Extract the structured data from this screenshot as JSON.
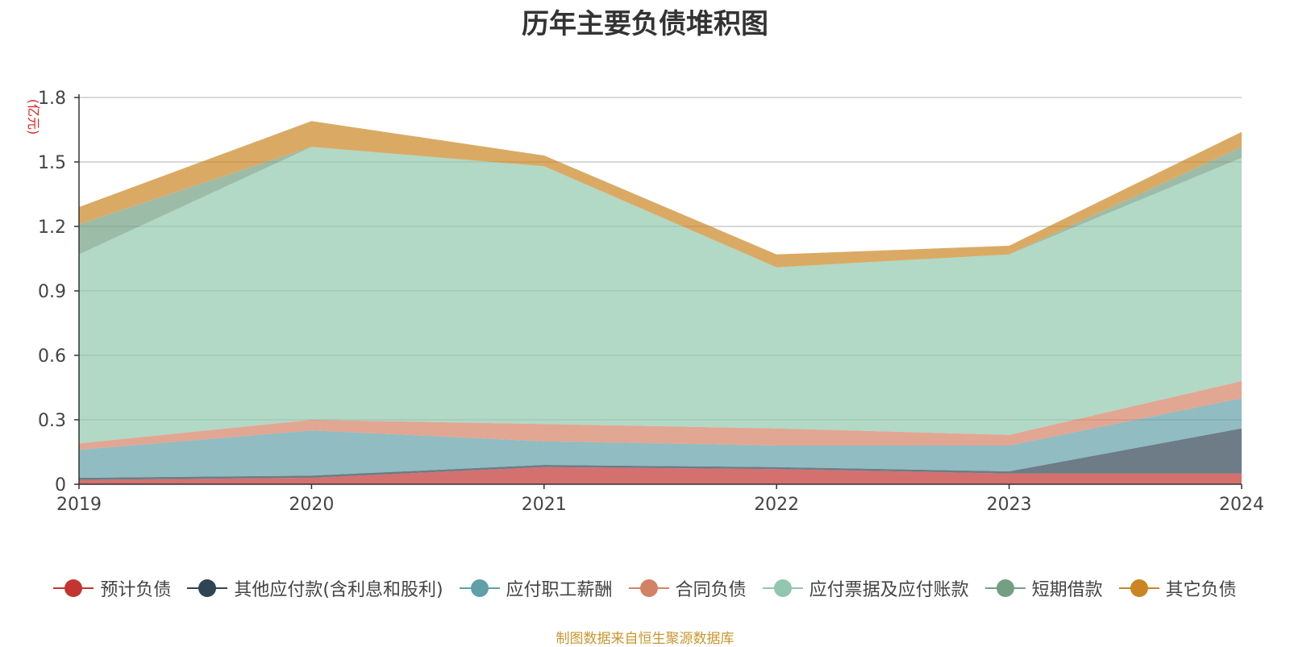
{
  "chart_data": {
    "type": "area",
    "stacked": true,
    "title": "历年主要负债堆积图",
    "ylabel": "(亿元)",
    "xlabel": "",
    "x": [
      "2019",
      "2020",
      "2021",
      "2022",
      "2023",
      "2024"
    ],
    "ylim": [
      0,
      1.8
    ],
    "yticks": [
      "0",
      "0.3",
      "0.6",
      "0.9",
      "1.2",
      "1.5",
      "1.8"
    ],
    "grid": true,
    "legend_position": "bottom",
    "series": [
      {
        "name": "预计负债",
        "color": "#c23531",
        "values": [
          0.02,
          0.03,
          0.08,
          0.07,
          0.05,
          0.05
        ]
      },
      {
        "name": "其他应付款(含利息和股利)",
        "color": "#2f4554",
        "values": [
          0.01,
          0.01,
          0.01,
          0.01,
          0.01,
          0.21
        ]
      },
      {
        "name": "应付职工薪酬",
        "color": "#61a0a8",
        "values": [
          0.13,
          0.21,
          0.11,
          0.1,
          0.12,
          0.14
        ]
      },
      {
        "name": "合同负债",
        "color": "#d48265",
        "values": [
          0.03,
          0.05,
          0.08,
          0.08,
          0.05,
          0.08
        ]
      },
      {
        "name": "应付票据及应付账款",
        "color": "#91c7ae",
        "values": [
          0.88,
          1.27,
          1.2,
          0.75,
          0.84,
          1.04
        ]
      },
      {
        "name": "短期借款",
        "color": "#749f83",
        "values": [
          0.14,
          0.0,
          0.0,
          0.0,
          0.0,
          0.05
        ]
      },
      {
        "name": "其它负债",
        "color": "#ca8622",
        "values": [
          0.08,
          0.12,
          0.05,
          0.06,
          0.04,
          0.07
        ]
      }
    ],
    "source_note": "制图数据来自恒生聚源数据库"
  }
}
